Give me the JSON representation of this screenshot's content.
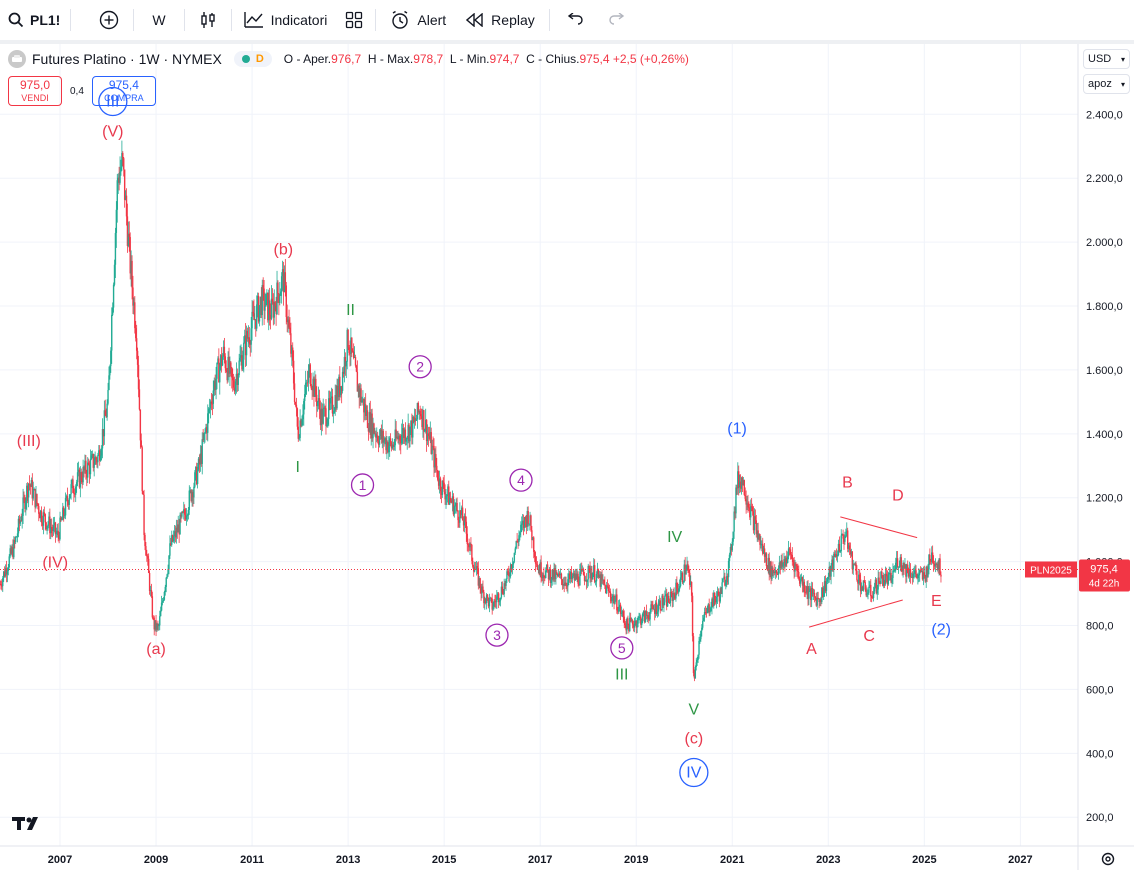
{
  "toolbar": {
    "symbol": "PL1!",
    "interval": "W",
    "indicators_label": "Indicatori",
    "alert_label": "Alert",
    "replay_label": "Replay"
  },
  "legend": {
    "title": "Futures Platino · 1W · NYMEX",
    "status_letter": "D",
    "open_label": "O - Aper.",
    "open": "976,7",
    "high_label": "H - Max.",
    "high": "978,7",
    "low_label": "L - Min.",
    "low": "974,7",
    "close_label": "C - Chius.",
    "close": "975,4",
    "change": "+2,5 (+0,26%)"
  },
  "trade": {
    "sell_price": "975,0",
    "sell_label": "VENDI",
    "spread": "0,4",
    "buy_price": "975,4",
    "buy_label": "COMPRA"
  },
  "price_axis": {
    "currency": "USD",
    "scale_mode": "apoz",
    "symbol_tag": "PLN2025",
    "last_price": "975,4",
    "countdown": "4d 22h"
  },
  "colors": {
    "up": "#22ab94",
    "down": "#f23645",
    "red_label": "#e8394e",
    "green_label": "#2e9645",
    "purple_label": "#9c27b0",
    "blue_label": "#2962ff",
    "wick": "#999999"
  },
  "chart_data": {
    "type": "candlestick",
    "title": "Futures Platino · 1W · NYMEX",
    "xlabel": "",
    "ylabel": "",
    "ylim": [
      110,
      2620
    ],
    "xlim": [
      2005.75,
      2028.2
    ],
    "x_ticks": [
      "2007",
      "2009",
      "2011",
      "2013",
      "2015",
      "2017",
      "2019",
      "2021",
      "2023",
      "2025",
      "2027"
    ],
    "y_ticks": [
      "200,0",
      "400,0",
      "600,0",
      "800,0",
      "1.000,0",
      "1.200,0",
      "1.400,0",
      "1.600,0",
      "1.800,0",
      "2.000,0",
      "2.200,0",
      "2.400,0"
    ],
    "y_tick_values": [
      200,
      400,
      600,
      800,
      1000,
      1200,
      1400,
      1600,
      1800,
      2000,
      2200,
      2400
    ],
    "grid": true,
    "current_price": 975.4,
    "price_path": [
      [
        2005.75,
        930
      ],
      [
        2006.05,
        1050
      ],
      [
        2006.35,
        1250
      ],
      [
        2006.6,
        1150
      ],
      [
        2006.95,
        1080
      ],
      [
        2007.2,
        1220
      ],
      [
        2007.5,
        1280
      ],
      [
        2007.8,
        1330
      ],
      [
        2008.0,
        1500
      ],
      [
        2008.2,
        2200
      ],
      [
        2008.3,
        2250
      ],
      [
        2008.45,
        1950
      ],
      [
        2008.6,
        1700
      ],
      [
        2008.75,
        1100
      ],
      [
        2008.95,
        800
      ],
      [
        2009.05,
        790
      ],
      [
        2009.3,
        1050
      ],
      [
        2009.6,
        1150
      ],
      [
        2009.9,
        1300
      ],
      [
        2010.2,
        1550
      ],
      [
        2010.4,
        1650
      ],
      [
        2010.6,
        1550
      ],
      [
        2010.9,
        1700
      ],
      [
        2011.2,
        1820
      ],
      [
        2011.4,
        1780
      ],
      [
        2011.65,
        1890
      ],
      [
        2011.85,
        1600
      ],
      [
        2011.95,
        1400
      ],
      [
        2012.2,
        1600
      ],
      [
        2012.45,
        1450
      ],
      [
        2012.65,
        1480
      ],
      [
        2012.85,
        1560
      ],
      [
        2013.0,
        1700
      ],
      [
        2013.2,
        1550
      ],
      [
        2013.4,
        1450
      ],
      [
        2013.6,
        1400
      ],
      [
        2013.9,
        1360
      ],
      [
        2014.1,
        1400
      ],
      [
        2014.35,
        1420
      ],
      [
        2014.5,
        1480
      ],
      [
        2014.7,
        1380
      ],
      [
        2014.9,
        1250
      ],
      [
        2015.1,
        1200
      ],
      [
        2015.4,
        1130
      ],
      [
        2015.6,
        1000
      ],
      [
        2015.8,
        900
      ],
      [
        2016.0,
        860
      ],
      [
        2016.3,
        940
      ],
      [
        2016.55,
        1080
      ],
      [
        2016.75,
        1150
      ],
      [
        2016.95,
        980
      ],
      [
        2017.2,
        960
      ],
      [
        2017.5,
        940
      ],
      [
        2017.8,
        950
      ],
      [
        2018.1,
        970
      ],
      [
        2018.4,
        910
      ],
      [
        2018.6,
        870
      ],
      [
        2018.8,
        800
      ],
      [
        2018.95,
        810
      ],
      [
        2019.2,
        830
      ],
      [
        2019.5,
        870
      ],
      [
        2019.7,
        880
      ],
      [
        2019.9,
        930
      ],
      [
        2020.05,
        990
      ],
      [
        2020.15,
        900
      ],
      [
        2020.2,
        620
      ],
      [
        2020.35,
        800
      ],
      [
        2020.55,
        870
      ],
      [
        2020.75,
        900
      ],
      [
        2020.95,
        1000
      ],
      [
        2021.1,
        1250
      ],
      [
        2021.2,
        1260
      ],
      [
        2021.4,
        1150
      ],
      [
        2021.6,
        1050
      ],
      [
        2021.8,
        970
      ],
      [
        2022.0,
        980
      ],
      [
        2022.2,
        1030
      ],
      [
        2022.4,
        950
      ],
      [
        2022.6,
        900
      ],
      [
        2022.8,
        880
      ],
      [
        2023.0,
        950
      ],
      [
        2023.2,
        1040
      ],
      [
        2023.35,
        1090
      ],
      [
        2023.5,
        1000
      ],
      [
        2023.7,
        920
      ],
      [
        2023.9,
        900
      ],
      [
        2024.1,
        950
      ],
      [
        2024.3,
        940
      ],
      [
        2024.45,
        1010
      ],
      [
        2024.6,
        980
      ],
      [
        2024.8,
        960
      ],
      [
        2025.0,
        950
      ],
      [
        2025.15,
        1020
      ],
      [
        2025.25,
        1000
      ],
      [
        2025.35,
        975
      ]
    ],
    "wave_labels": [
      {
        "text": "III",
        "year": 2008.1,
        "price": 2440,
        "color": "blue",
        "circle": true
      },
      {
        "text": "(V)",
        "year": 2008.1,
        "price": 2350,
        "color": "red"
      },
      {
        "text": "(III)",
        "year": 2006.35,
        "price": 1380,
        "color": "red"
      },
      {
        "text": "(IV)",
        "year": 2006.9,
        "price": 1000,
        "color": "red"
      },
      {
        "text": "(a)",
        "year": 2009.0,
        "price": 730,
        "color": "red"
      },
      {
        "text": "(b)",
        "year": 2011.65,
        "price": 1980,
        "color": "red"
      },
      {
        "text": "II",
        "year": 2013.05,
        "price": 1790,
        "color": "green"
      },
      {
        "text": "I",
        "year": 2011.95,
        "price": 1300,
        "color": "green"
      },
      {
        "text": "2",
        "year": 2014.5,
        "price": 1610,
        "color": "purple",
        "circle": true
      },
      {
        "text": "1",
        "year": 2013.3,
        "price": 1240,
        "color": "purple",
        "circle": true
      },
      {
        "text": "4",
        "year": 2016.6,
        "price": 1255,
        "color": "purple",
        "circle": true
      },
      {
        "text": "3",
        "year": 2016.1,
        "price": 770,
        "color": "purple",
        "circle": true
      },
      {
        "text": "5",
        "year": 2018.7,
        "price": 730,
        "color": "purple",
        "circle": true
      },
      {
        "text": "III",
        "year": 2018.7,
        "price": 650,
        "color": "green"
      },
      {
        "text": "IV",
        "year": 2019.8,
        "price": 1080,
        "color": "green"
      },
      {
        "text": "V",
        "year": 2020.2,
        "price": 540,
        "color": "green"
      },
      {
        "text": "(c)",
        "year": 2020.2,
        "price": 450,
        "color": "red"
      },
      {
        "text": "IV",
        "year": 2020.2,
        "price": 340,
        "color": "blue",
        "circle": true
      },
      {
        "text": "(1)",
        "year": 2021.1,
        "price": 1420,
        "color": "blue"
      },
      {
        "text": "B",
        "year": 2023.4,
        "price": 1250,
        "color": "red"
      },
      {
        "text": "D",
        "year": 2024.45,
        "price": 1210,
        "color": "red"
      },
      {
        "text": "A",
        "year": 2022.65,
        "price": 730,
        "color": "red"
      },
      {
        "text": "C",
        "year": 2023.85,
        "price": 770,
        "color": "red"
      },
      {
        "text": "E",
        "year": 2025.25,
        "price": 880,
        "color": "red"
      },
      {
        "text": "(2)",
        "year": 2025.35,
        "price": 790,
        "color": "blue"
      }
    ],
    "triangle_lines": [
      {
        "from": [
          2023.25,
          1140
        ],
        "to": [
          2024.85,
          1075
        ]
      },
      {
        "from": [
          2022.6,
          795
        ],
        "to": [
          2024.55,
          880
        ]
      }
    ]
  }
}
